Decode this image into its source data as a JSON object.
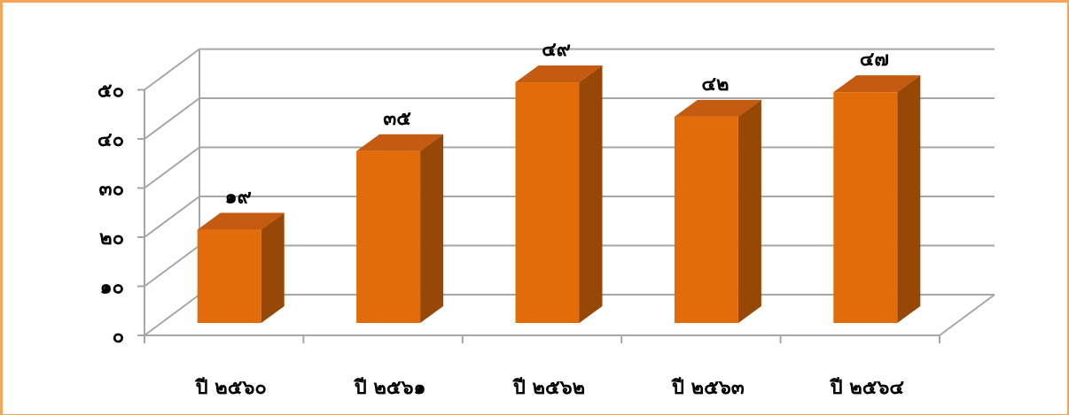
{
  "chart_data": {
    "type": "bar",
    "categories": [
      "ปี ๒๕๖๐",
      "ปี ๒๕๖๑",
      "ปี ๒๕๖๒",
      "ปี ๒๕๖๓",
      "ปี ๒๕๖๔"
    ],
    "values": [
      19,
      35,
      49,
      42,
      47
    ],
    "value_labels": [
      "๑๙",
      "๓๕",
      "๔๙",
      "๔๒",
      "๔๗"
    ],
    "y_ticks": [
      0,
      10,
      20,
      30,
      40,
      50
    ],
    "y_tick_labels": [
      "๐",
      "๑๐",
      "๒๐",
      "๓๐",
      "๔๐",
      "๕๐"
    ],
    "ylim": [
      0,
      50
    ],
    "grid": true,
    "three_d": true,
    "title": "",
    "xlabel": "",
    "ylabel": "",
    "colors": {
      "bar_front": "#e36c0a",
      "bar_side": "#974706",
      "bar_top": "#c55a11",
      "grid": "#a6a6a6",
      "frame": "#f5a65b"
    }
  }
}
